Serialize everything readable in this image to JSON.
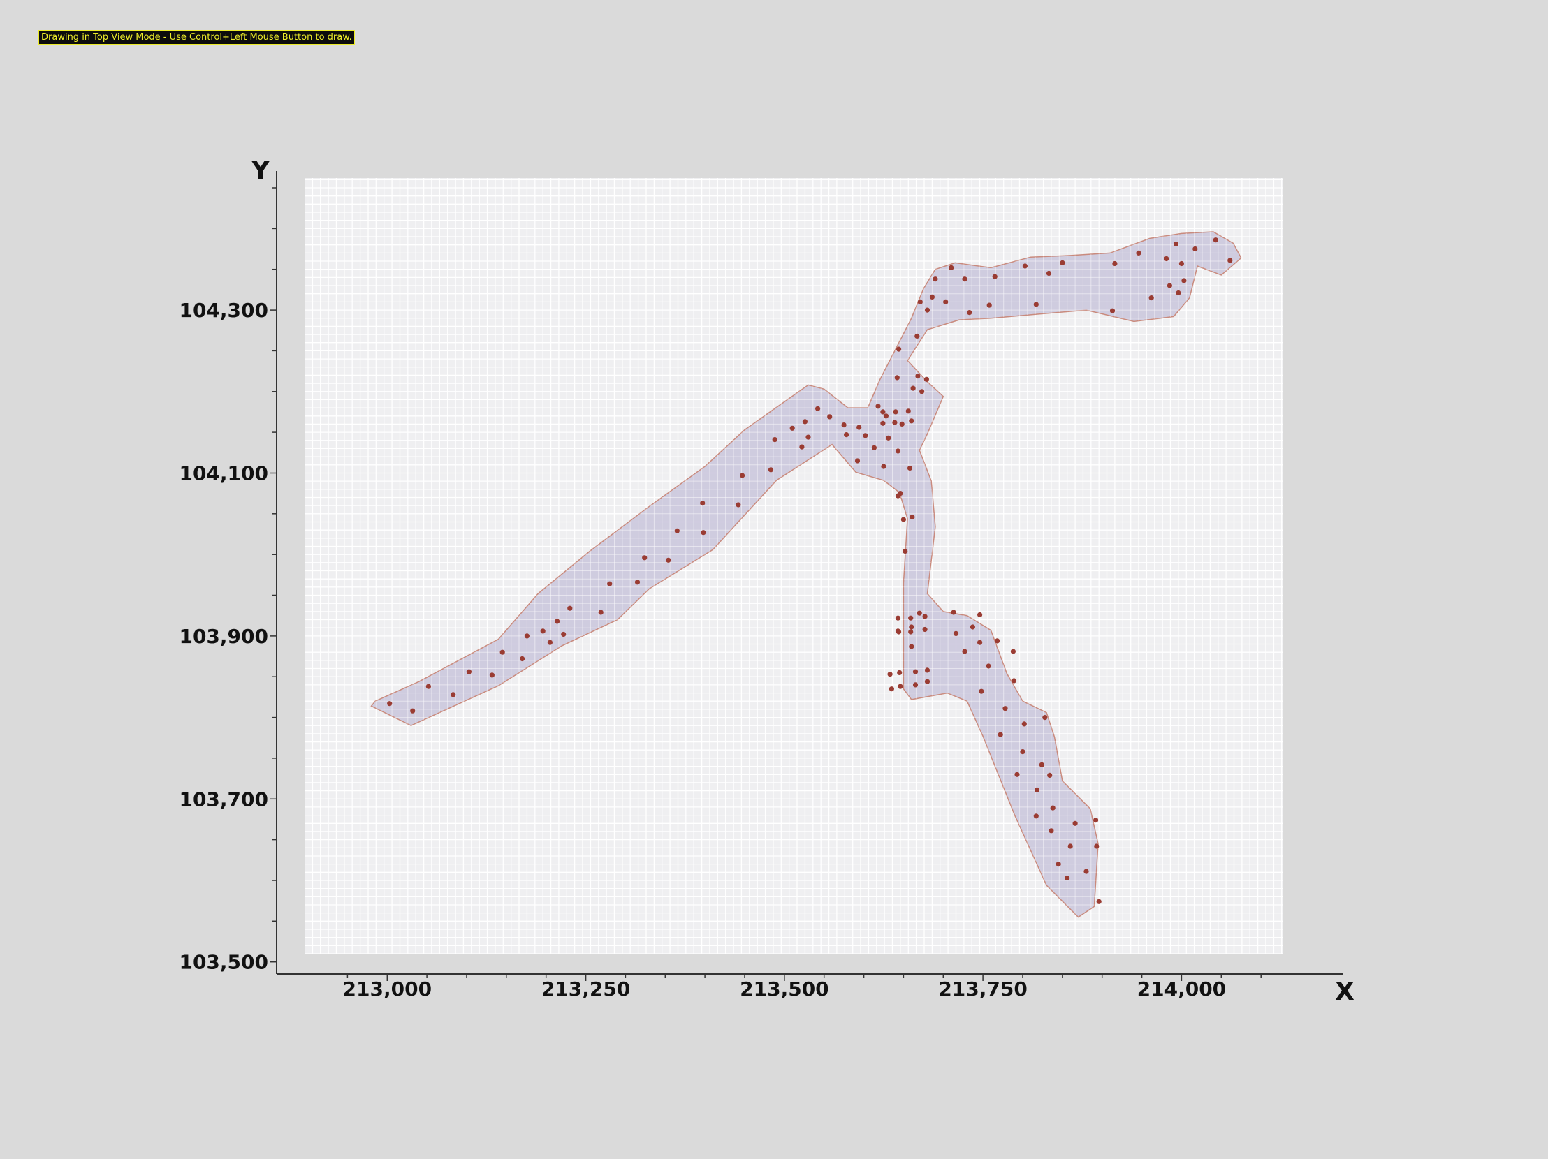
{
  "status_banner": {
    "text": "Drawing in Top View Mode - Use Control+Left Mouse Button to draw."
  },
  "colors": {
    "background": "#dadada",
    "grid_fill": "#efeff1",
    "grid_line": "#ffffff",
    "polygon_fill": "#c9c6dc",
    "polygon_stroke": "#c98a7d",
    "point_fill": "#9a3c33",
    "axis": "#333333",
    "banner_bg": "#0c0c0c",
    "banner_text": "#ecec2a"
  },
  "chart_data": {
    "type": "map",
    "xlabel": "X",
    "ylabel": "Y",
    "xlim": [
      212896,
      214128
    ],
    "ylim": [
      103510,
      104462
    ],
    "x_ticks": [
      {
        "value": 213000,
        "label": "213,000"
      },
      {
        "value": 213250,
        "label": "213,250"
      },
      {
        "value": 213500,
        "label": "213,500"
      },
      {
        "value": 213750,
        "label": "213,750"
      },
      {
        "value": 214000,
        "label": "214,000"
      }
    ],
    "y_ticks": [
      {
        "value": 103500,
        "label": "103,500"
      },
      {
        "value": 103700,
        "label": "103,700"
      },
      {
        "value": 103900,
        "label": "103,900"
      },
      {
        "value": 104100,
        "label": "104,100"
      },
      {
        "value": 104300,
        "label": "104,300"
      }
    ],
    "grid": true,
    "polygon": [
      [
        212980,
        103814
      ],
      [
        213030,
        103790
      ],
      [
        213140,
        103839
      ],
      [
        213220,
        103888
      ],
      [
        213290,
        103920
      ],
      [
        213330,
        103958
      ],
      [
        213410,
        104006
      ],
      [
        213490,
        104091
      ],
      [
        213560,
        104135
      ],
      [
        213590,
        104101
      ],
      [
        213625,
        104091
      ],
      [
        213645,
        104076
      ],
      [
        213655,
        104044
      ],
      [
        213650,
        103965
      ],
      [
        213650,
        103835
      ],
      [
        213660,
        103822
      ],
      [
        213705,
        103830
      ],
      [
        213730,
        103820
      ],
      [
        213750,
        103777
      ],
      [
        213790,
        103680
      ],
      [
        213830,
        103594
      ],
      [
        213870,
        103555
      ],
      [
        213890,
        103568
      ],
      [
        213895,
        103645
      ],
      [
        213885,
        103688
      ],
      [
        213850,
        103722
      ],
      [
        213840,
        103776
      ],
      [
        213830,
        103806
      ],
      [
        213800,
        103820
      ],
      [
        213780,
        103854
      ],
      [
        213760,
        103907
      ],
      [
        213730,
        103925
      ],
      [
        213700,
        103930
      ],
      [
        213680,
        103952
      ],
      [
        213690,
        104034
      ],
      [
        213685,
        104090
      ],
      [
        213670,
        104128
      ],
      [
        213680,
        104148
      ],
      [
        213700,
        104194
      ],
      [
        213680,
        104212
      ],
      [
        213655,
        104238
      ],
      [
        213680,
        104276
      ],
      [
        213720,
        104288
      ],
      [
        213760,
        104290
      ],
      [
        213820,
        104295
      ],
      [
        213880,
        104300
      ],
      [
        213940,
        104286
      ],
      [
        213990,
        104292
      ],
      [
        214010,
        104315
      ],
      [
        214020,
        104354
      ],
      [
        214050,
        104343
      ],
      [
        214075,
        104364
      ],
      [
        214065,
        104382
      ],
      [
        214040,
        104396
      ],
      [
        214000,
        104394
      ],
      [
        213960,
        104388
      ],
      [
        213910,
        104370
      ],
      [
        213860,
        104367
      ],
      [
        213810,
        104365
      ],
      [
        213760,
        104352
      ],
      [
        213715,
        104358
      ],
      [
        213690,
        104350
      ],
      [
        213675,
        104326
      ],
      [
        213660,
        104290
      ],
      [
        213640,
        104252
      ],
      [
        213620,
        104214
      ],
      [
        213605,
        104180
      ],
      [
        213580,
        104180
      ],
      [
        213550,
        104203
      ],
      [
        213530,
        104208
      ],
      [
        213450,
        104153
      ],
      [
        213400,
        104108
      ],
      [
        213330,
        104059
      ],
      [
        213255,
        104004
      ],
      [
        213190,
        103952
      ],
      [
        213140,
        103896
      ],
      [
        213040,
        103844
      ],
      [
        212985,
        103820
      ]
    ],
    "points": [
      [
        213003,
        103817
      ],
      [
        213032,
        103808
      ],
      [
        213052,
        103838
      ],
      [
        213083,
        103828
      ],
      [
        213103,
        103856
      ],
      [
        213132,
        103852
      ],
      [
        213145,
        103880
      ],
      [
        213170,
        103872
      ],
      [
        213176,
        103900
      ],
      [
        213196,
        103906
      ],
      [
        213205,
        103892
      ],
      [
        213214,
        103918
      ],
      [
        213222,
        103902
      ],
      [
        213230,
        103934
      ],
      [
        213269,
        103929
      ],
      [
        213280,
        103964
      ],
      [
        213315,
        103966
      ],
      [
        213324,
        103996
      ],
      [
        213354,
        103993
      ],
      [
        213365,
        104029
      ],
      [
        213397,
        104063
      ],
      [
        213398,
        104027
      ],
      [
        213442,
        104061
      ],
      [
        213447,
        104097
      ],
      [
        213483,
        104104
      ],
      [
        213488,
        104141
      ],
      [
        213510,
        104155
      ],
      [
        213522,
        104132
      ],
      [
        213526,
        104163
      ],
      [
        213530,
        104144
      ],
      [
        213542,
        104179
      ],
      [
        213557,
        104169
      ],
      [
        213575,
        104159
      ],
      [
        213578,
        104147
      ],
      [
        213592,
        104115
      ],
      [
        213594,
        104156
      ],
      [
        213602,
        104146
      ],
      [
        213613,
        104131
      ],
      [
        213618,
        104182
      ],
      [
        213624,
        104175
      ],
      [
        213624,
        104161
      ],
      [
        213625,
        104108
      ],
      [
        213628,
        104170
      ],
      [
        213631,
        104143
      ],
      [
        213639,
        104162
      ],
      [
        213640,
        104175
      ],
      [
        213642,
        104217
      ],
      [
        213643,
        104072
      ],
      [
        213643,
        104127
      ],
      [
        213644,
        104252
      ],
      [
        213646,
        104075
      ],
      [
        213648,
        104160
      ],
      [
        213650,
        104043
      ],
      [
        213652,
        104004
      ],
      [
        213656,
        104176
      ],
      [
        213658,
        104106
      ],
      [
        213660,
        104164
      ],
      [
        213661,
        104046
      ],
      [
        213662,
        104204
      ],
      [
        213667,
        104268
      ],
      [
        213668,
        104219
      ],
      [
        213671,
        104310
      ],
      [
        213673,
        104200
      ],
      [
        213679,
        104215
      ],
      [
        213680,
        104300
      ],
      [
        213686,
        104316
      ],
      [
        213690,
        104338
      ],
      [
        213703,
        104310
      ],
      [
        213710,
        104352
      ],
      [
        213727,
        104338
      ],
      [
        213733,
        104297
      ],
      [
        213758,
        104306
      ],
      [
        213765,
        104341
      ],
      [
        213803,
        104354
      ],
      [
        213817,
        104307
      ],
      [
        213833,
        104345
      ],
      [
        213850,
        104358
      ],
      [
        213913,
        104299
      ],
      [
        213916,
        104357
      ],
      [
        213946,
        104370
      ],
      [
        213962,
        104315
      ],
      [
        213981,
        104363
      ],
      [
        213985,
        104330
      ],
      [
        213993,
        104381
      ],
      [
        213996,
        104321
      ],
      [
        214000,
        104357
      ],
      [
        214003,
        104336
      ],
      [
        214017,
        104375
      ],
      [
        214043,
        104386
      ],
      [
        214061,
        104361
      ],
      [
        213643,
        103922
      ],
      [
        213643,
        103906
      ],
      [
        213645,
        103855
      ],
      [
        213646,
        103838
      ],
      [
        213659,
        103922
      ],
      [
        213659,
        103905
      ],
      [
        213660,
        103887
      ],
      [
        213665,
        103856
      ],
      [
        213665,
        103840
      ],
      [
        213670,
        103928
      ],
      [
        213677,
        103908
      ],
      [
        213677,
        103924
      ],
      [
        213680,
        103858
      ],
      [
        213680,
        103844
      ],
      [
        213713,
        103929
      ],
      [
        213716,
        103903
      ],
      [
        213727,
        103881
      ],
      [
        213737,
        103911
      ],
      [
        213746,
        103892
      ],
      [
        213746,
        103926
      ],
      [
        213748,
        103832
      ],
      [
        213757,
        103863
      ],
      [
        213768,
        103894
      ],
      [
        213772,
        103779
      ],
      [
        213778,
        103811
      ],
      [
        213788,
        103881
      ],
      [
        213789,
        103845
      ],
      [
        213793,
        103730
      ],
      [
        213800,
        103758
      ],
      [
        213802,
        103792
      ],
      [
        213817,
        103679
      ],
      [
        213818,
        103711
      ],
      [
        213824,
        103742
      ],
      [
        213828,
        103800
      ],
      [
        213834,
        103729
      ],
      [
        213836,
        103661
      ],
      [
        213838,
        103689
      ],
      [
        213845,
        103620
      ],
      [
        213856,
        103603
      ],
      [
        213860,
        103642
      ],
      [
        213866,
        103670
      ],
      [
        213880,
        103611
      ],
      [
        213892,
        103674
      ],
      [
        213893,
        103642
      ],
      [
        213896,
        103574
      ],
      [
        213635,
        103835
      ],
      [
        213633,
        103853
      ],
      [
        213660,
        103911
      ],
      [
        213644,
        103905
      ]
    ]
  }
}
